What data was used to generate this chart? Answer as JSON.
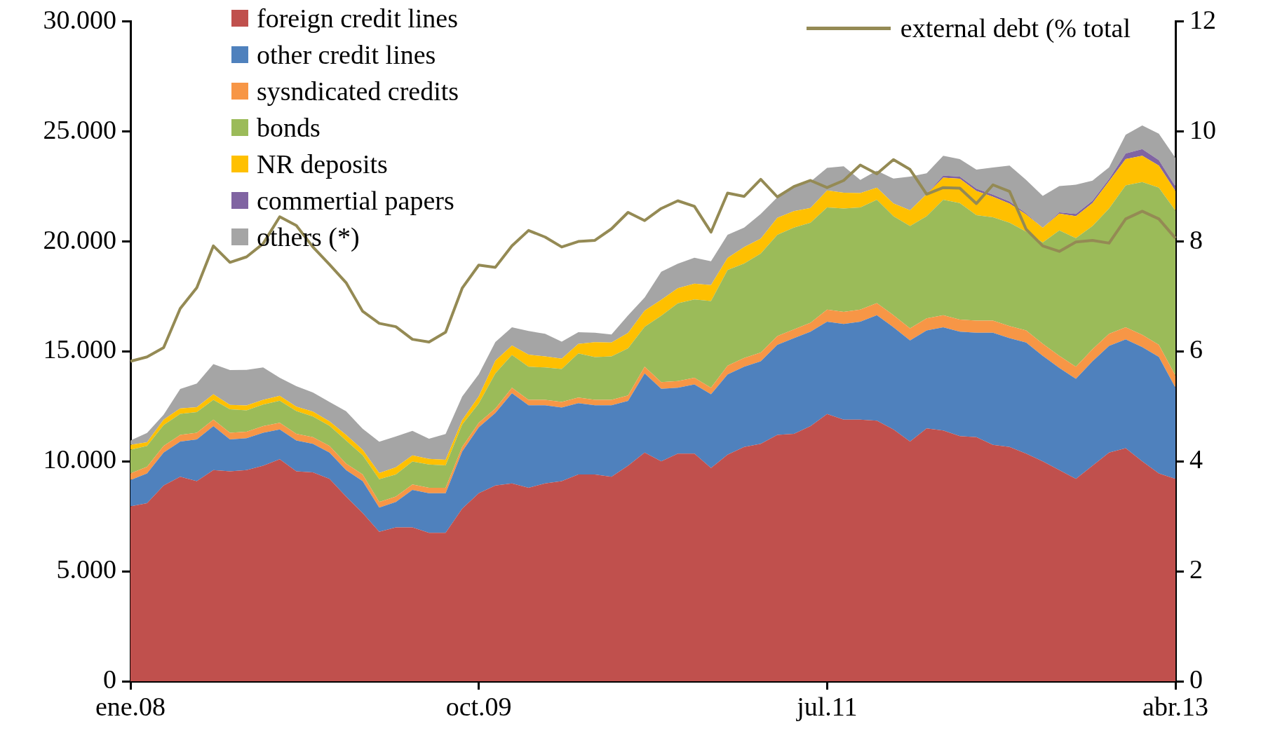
{
  "chart_data": {
    "type": "area",
    "stacked": true,
    "legend": "top left",
    "grid": false,
    "marker": "none",
    "categories": [
      "ene.08",
      null,
      null,
      null,
      null,
      null,
      null,
      null,
      null,
      null,
      null,
      null,
      null,
      null,
      null,
      null,
      null,
      null,
      null,
      null,
      null,
      "oct.09",
      null,
      null,
      null,
      null,
      null,
      null,
      null,
      null,
      null,
      null,
      null,
      null,
      null,
      null,
      null,
      null,
      null,
      null,
      null,
      null,
      "jul.11",
      null,
      null,
      null,
      null,
      null,
      null,
      null,
      null,
      null,
      null,
      null,
      null,
      null,
      null,
      null,
      null,
      null,
      null,
      null,
      null,
      "abr.13"
    ],
    "ylim": [
      0,
      30000
    ],
    "yticks": [
      0,
      {
        "value": 5000,
        "label": "5.000"
      },
      {
        "value": 10000,
        "label": "10.000"
      },
      {
        "value": 15000,
        "label": "15.000"
      },
      {
        "value": 20000,
        "label": "20.000"
      },
      {
        "value": 25000,
        "label": "25.000"
      },
      {
        "value": 30000,
        "label": "30.000"
      }
    ],
    "y2lim": [
      0,
      12
    ],
    "y2ticks": [
      0,
      2,
      4,
      6,
      8,
      10,
      12
    ],
    "series": [
      {
        "name": "foreign credit lines",
        "type": "area",
        "color": "#c0504d",
        "values": [
          7950,
          8100,
          8900,
          9300,
          9100,
          9600,
          9550,
          9600,
          9800,
          10100,
          9550,
          9500,
          9200,
          8400,
          7650,
          6800,
          7000,
          7000,
          6750,
          6750,
          7850,
          8550,
          8900,
          9000,
          8800,
          9000,
          9100,
          9400,
          9400,
          9300,
          9800,
          10400,
          10000,
          10350,
          10350,
          9700,
          10300,
          10650,
          10800,
          11200,
          11250,
          11600,
          12150,
          11900,
          11900,
          11850,
          11450,
          10900,
          11500,
          11400,
          11150,
          11100,
          10750,
          10650,
          10350,
          10000,
          9600,
          9200,
          9800,
          10400,
          10600,
          10000,
          9450,
          9200
        ]
      },
      {
        "name": "other credit lines",
        "type": "area",
        "color": "#4f81bd",
        "values": [
          1200,
          1350,
          1500,
          1600,
          1900,
          2000,
          1450,
          1450,
          1500,
          1350,
          1400,
          1300,
          1200,
          1200,
          1450,
          1100,
          1150,
          1700,
          1800,
          1800,
          2600,
          3000,
          3300,
          4100,
          3750,
          3550,
          3350,
          3250,
          3150,
          3250,
          2950,
          3600,
          3300,
          3000,
          3150,
          3350,
          3650,
          3650,
          3750,
          4100,
          4350,
          4300,
          4200,
          4350,
          4450,
          4800,
          4650,
          4600,
          4450,
          4700,
          4750,
          4750,
          5100,
          4950,
          5050,
          4800,
          4650,
          4550,
          4750,
          4850,
          4950,
          5200,
          5300,
          4150
        ]
      },
      {
        "name": "sysndicated credits",
        "type": "area",
        "color": "#f79646",
        "values": [
          300,
          300,
          300,
          300,
          300,
          300,
          300,
          300,
          300,
          300,
          300,
          300,
          300,
          300,
          300,
          250,
          250,
          250,
          250,
          250,
          200,
          200,
          200,
          250,
          250,
          250,
          250,
          250,
          250,
          250,
          250,
          300,
          300,
          300,
          300,
          300,
          400,
          400,
          400,
          400,
          400,
          400,
          550,
          550,
          550,
          550,
          550,
          550,
          550,
          550,
          550,
          550,
          550,
          550,
          550,
          550,
          550,
          550,
          550,
          550,
          550,
          550,
          550,
          550
        ]
      },
      {
        "name": "bonds",
        "type": "area",
        "color": "#9bbb59",
        "values": [
          1080,
          950,
          950,
          960,
          940,
          900,
          1070,
          970,
          980,
          1010,
          1040,
          940,
          920,
          1050,
          880,
          1040,
          1000,
          1040,
          1060,
          1020,
          1020,
          880,
          1600,
          1490,
          1500,
          1470,
          1500,
          2010,
          1940,
          1970,
          2140,
          1820,
          3020,
          3540,
          3560,
          3940,
          4350,
          4300,
          4500,
          4600,
          4630,
          4550,
          4650,
          4700,
          4650,
          4700,
          4500,
          4650,
          4650,
          5250,
          5300,
          4800,
          4700,
          4700,
          4500,
          4600,
          5700,
          5850,
          5600,
          5700,
          6450,
          6950,
          7150,
          7500
        ]
      },
      {
        "name": "NR deposits",
        "type": "area",
        "color": "#ffc000",
        "values": [
          220,
          170,
          250,
          250,
          220,
          250,
          200,
          220,
          220,
          220,
          200,
          220,
          200,
          250,
          250,
          280,
          330,
          280,
          250,
          250,
          200,
          330,
          580,
          430,
          550,
          500,
          470,
          430,
          680,
          630,
          700,
          730,
          730,
          680,
          720,
          730,
          550,
          750,
          680,
          780,
          750,
          670,
          770,
          720,
          650,
          550,
          580,
          720,
          1000,
          1000,
          1100,
          1100,
          930,
          870,
          780,
          670,
          770,
          1000,
          1050,
          1240,
          1200,
          1200,
          1000,
          900
        ]
      },
      {
        "name": "commertial papers",
        "type": "area",
        "color": "#8064a2",
        "values": [
          0,
          0,
          0,
          0,
          0,
          0,
          0,
          0,
          0,
          0,
          0,
          0,
          0,
          0,
          0,
          0,
          0,
          0,
          0,
          0,
          0,
          0,
          0,
          0,
          0,
          0,
          0,
          0,
          0,
          0,
          0,
          0,
          0,
          0,
          0,
          0,
          0,
          0,
          0,
          0,
          0,
          0,
          0,
          0,
          0,
          0,
          0,
          0,
          0,
          100,
          100,
          100,
          100,
          100,
          50,
          0,
          50,
          100,
          100,
          100,
          250,
          300,
          250,
          200
        ]
      },
      {
        "name": "others (*)",
        "type": "area",
        "color": "#a5a5a5",
        "values": [
          200,
          420,
          220,
          880,
          1080,
          1370,
          1580,
          1620,
          1470,
          820,
          930,
          870,
          880,
          1080,
          950,
          1420,
          1400,
          1120,
          920,
          1170,
          1080,
          1000,
          850,
          830,
          1080,
          1030,
          770,
          530,
          430,
          370,
          800,
          600,
          1270,
          1120,
          1180,
          1080,
          1050,
          880,
          1120,
          930,
          1100,
          1200,
          1030,
          1200,
          600,
          770,
          1130,
          1530,
          950,
          900,
          800,
          870,
          1230,
          1630,
          1520,
          1450,
          1200,
          1330,
          920,
          530,
          850,
          1080,
          1200,
          1300
        ]
      },
      {
        "name": "external debt (% total",
        "type": "line",
        "axis": "y2",
        "color": "#948a54",
        "values": [
          5.82,
          5.9,
          6.07,
          6.78,
          7.16,
          7.92,
          7.62,
          7.72,
          7.96,
          8.45,
          8.29,
          7.9,
          7.58,
          7.25,
          6.73,
          6.51,
          6.45,
          6.22,
          6.17,
          6.35,
          7.15,
          7.57,
          7.53,
          7.92,
          8.2,
          8.08,
          7.9,
          8.0,
          8.02,
          8.23,
          8.53,
          8.38,
          8.6,
          8.74,
          8.64,
          8.17,
          8.88,
          8.82,
          9.13,
          8.81,
          9.0,
          9.11,
          8.98,
          9.11,
          9.39,
          9.23,
          9.49,
          9.31,
          8.86,
          8.98,
          8.97,
          8.69,
          9.03,
          8.91,
          8.22,
          7.92,
          7.82,
          7.99,
          8.02,
          7.97,
          8.41,
          8.55,
          8.41,
          8.06
        ]
      }
    ]
  }
}
